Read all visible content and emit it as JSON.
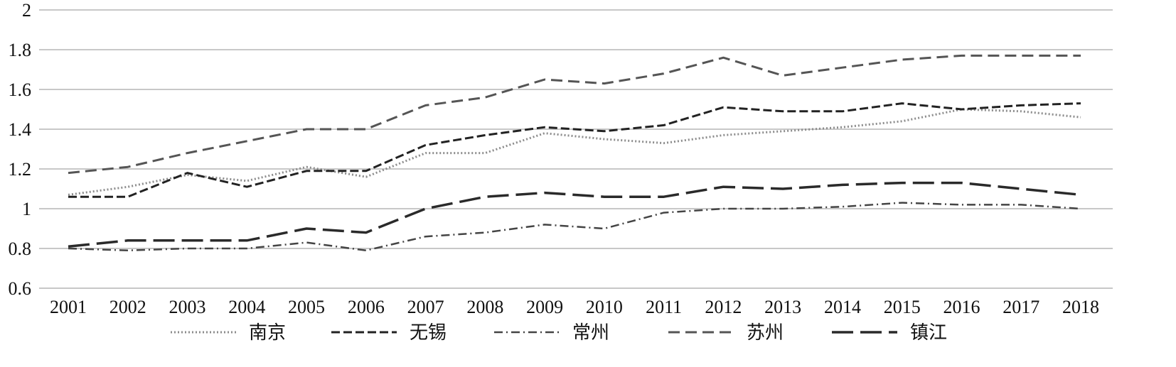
{
  "chart_data": {
    "type": "line",
    "title": "",
    "xlabel": "",
    "ylabel": "",
    "ylim": [
      0.6,
      2
    ],
    "yticks": [
      "0.6",
      "0.8",
      "1",
      "1.2",
      "1.4",
      "1.6",
      "1.8",
      "2"
    ],
    "grid": "horizontal",
    "legend_position": "bottom",
    "x": [
      "2001",
      "2002",
      "2003",
      "2004",
      "2005",
      "2006",
      "2007",
      "2008",
      "2009",
      "2010",
      "2011",
      "2012",
      "2013",
      "2014",
      "2015",
      "2016",
      "2017",
      "2018"
    ],
    "series": [
      {
        "name": "南京",
        "style": "dotted",
        "color": "#8c8c8c",
        "values": [
          1.07,
          1.11,
          1.17,
          1.14,
          1.21,
          1.16,
          1.28,
          1.28,
          1.38,
          1.35,
          1.33,
          1.37,
          1.39,
          1.41,
          1.44,
          1.5,
          1.49,
          1.46
        ]
      },
      {
        "name": "无锡",
        "style": "short-dash",
        "color": "#222222",
        "values": [
          1.06,
          1.06,
          1.18,
          1.11,
          1.19,
          1.19,
          1.32,
          1.37,
          1.41,
          1.39,
          1.42,
          1.51,
          1.49,
          1.49,
          1.53,
          1.5,
          1.52,
          1.53
        ]
      },
      {
        "name": "常州",
        "style": "dash-dot",
        "color": "#444444",
        "values": [
          0.8,
          0.79,
          0.8,
          0.8,
          0.83,
          0.79,
          0.86,
          0.88,
          0.92,
          0.9,
          0.98,
          1.0,
          1.0,
          1.01,
          1.03,
          1.02,
          1.02,
          1.0
        ]
      },
      {
        "name": "苏州",
        "style": "medium-dash",
        "color": "#555555",
        "values": [
          1.18,
          1.21,
          1.28,
          1.34,
          1.4,
          1.4,
          1.52,
          1.56,
          1.65,
          1.63,
          1.68,
          1.76,
          1.67,
          1.71,
          1.75,
          1.77,
          1.77,
          1.77
        ]
      },
      {
        "name": "镇江",
        "style": "long-dash",
        "color": "#2a2a2a",
        "values": [
          0.81,
          0.84,
          0.84,
          0.84,
          0.9,
          0.88,
          1.0,
          1.06,
          1.08,
          1.06,
          1.06,
          1.11,
          1.1,
          1.12,
          1.13,
          1.13,
          1.1,
          1.07
        ]
      }
    ]
  }
}
